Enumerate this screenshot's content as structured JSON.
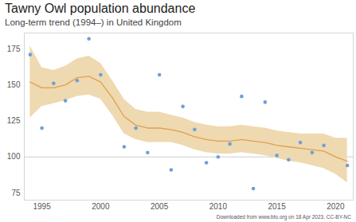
{
  "chart_data": {
    "type": "line",
    "title": "Tawny Owl population abundance",
    "subtitle": "Long-term trend (1994–) in United Kingdom",
    "caption": "Downloaded from www.bto.org on 18 Apr 2023. CC-BY-NC",
    "x": [
      1994,
      1995,
      1996,
      1997,
      1998,
      1999,
      2000,
      2001,
      2002,
      2003,
      2004,
      2005,
      2006,
      2007,
      2008,
      2009,
      2010,
      2011,
      2012,
      2013,
      2014,
      2015,
      2016,
      2017,
      2018,
      2019,
      2020,
      2021
    ],
    "series": [
      {
        "type": "band",
        "color": "#efd9b0",
        "lower": [
          127,
          135,
          137,
          139,
          142,
          143,
          140,
          129,
          116,
          112,
          110,
          110,
          110,
          108,
          105,
          103,
          102,
          102,
          103,
          102,
          101,
          99,
          97,
          96,
          94,
          92,
          88,
          82
        ],
        "upper": [
          177,
          162,
          160,
          163,
          168,
          170,
          165,
          153,
          140,
          133,
          131,
          131,
          129,
          127,
          124,
          122,
          121,
          121,
          122,
          121,
          120,
          118,
          117,
          116,
          116,
          116,
          113,
          113
        ]
      },
      {
        "type": "line",
        "color": "#e0a050",
        "values": [
          152,
          148,
          148,
          150,
          155,
          156,
          152,
          141,
          128,
          122,
          120,
          120,
          119,
          117,
          114,
          112,
          111,
          111,
          112,
          111,
          110,
          108,
          107,
          106,
          105,
          104,
          100,
          97
        ]
      },
      {
        "type": "scatter",
        "color": "#6f9fd8",
        "marker": "circle",
        "values": [
          171,
          120,
          151,
          139,
          153,
          182,
          157,
          null,
          107,
          120,
          103,
          157,
          91,
          135,
          119,
          96,
          100,
          109,
          142,
          78,
          138,
          101,
          98,
          110,
          103,
          108,
          null,
          94
        ]
      }
    ],
    "reference_line": 100,
    "xlim": [
      1993.5,
      2021.5
    ],
    "xticks": [
      1995,
      2000,
      2005,
      2010,
      2015,
      2020
    ],
    "ylim": [
      70,
      186
    ],
    "yticks": [
      75,
      100,
      125,
      150,
      175
    ],
    "grid": false
  }
}
